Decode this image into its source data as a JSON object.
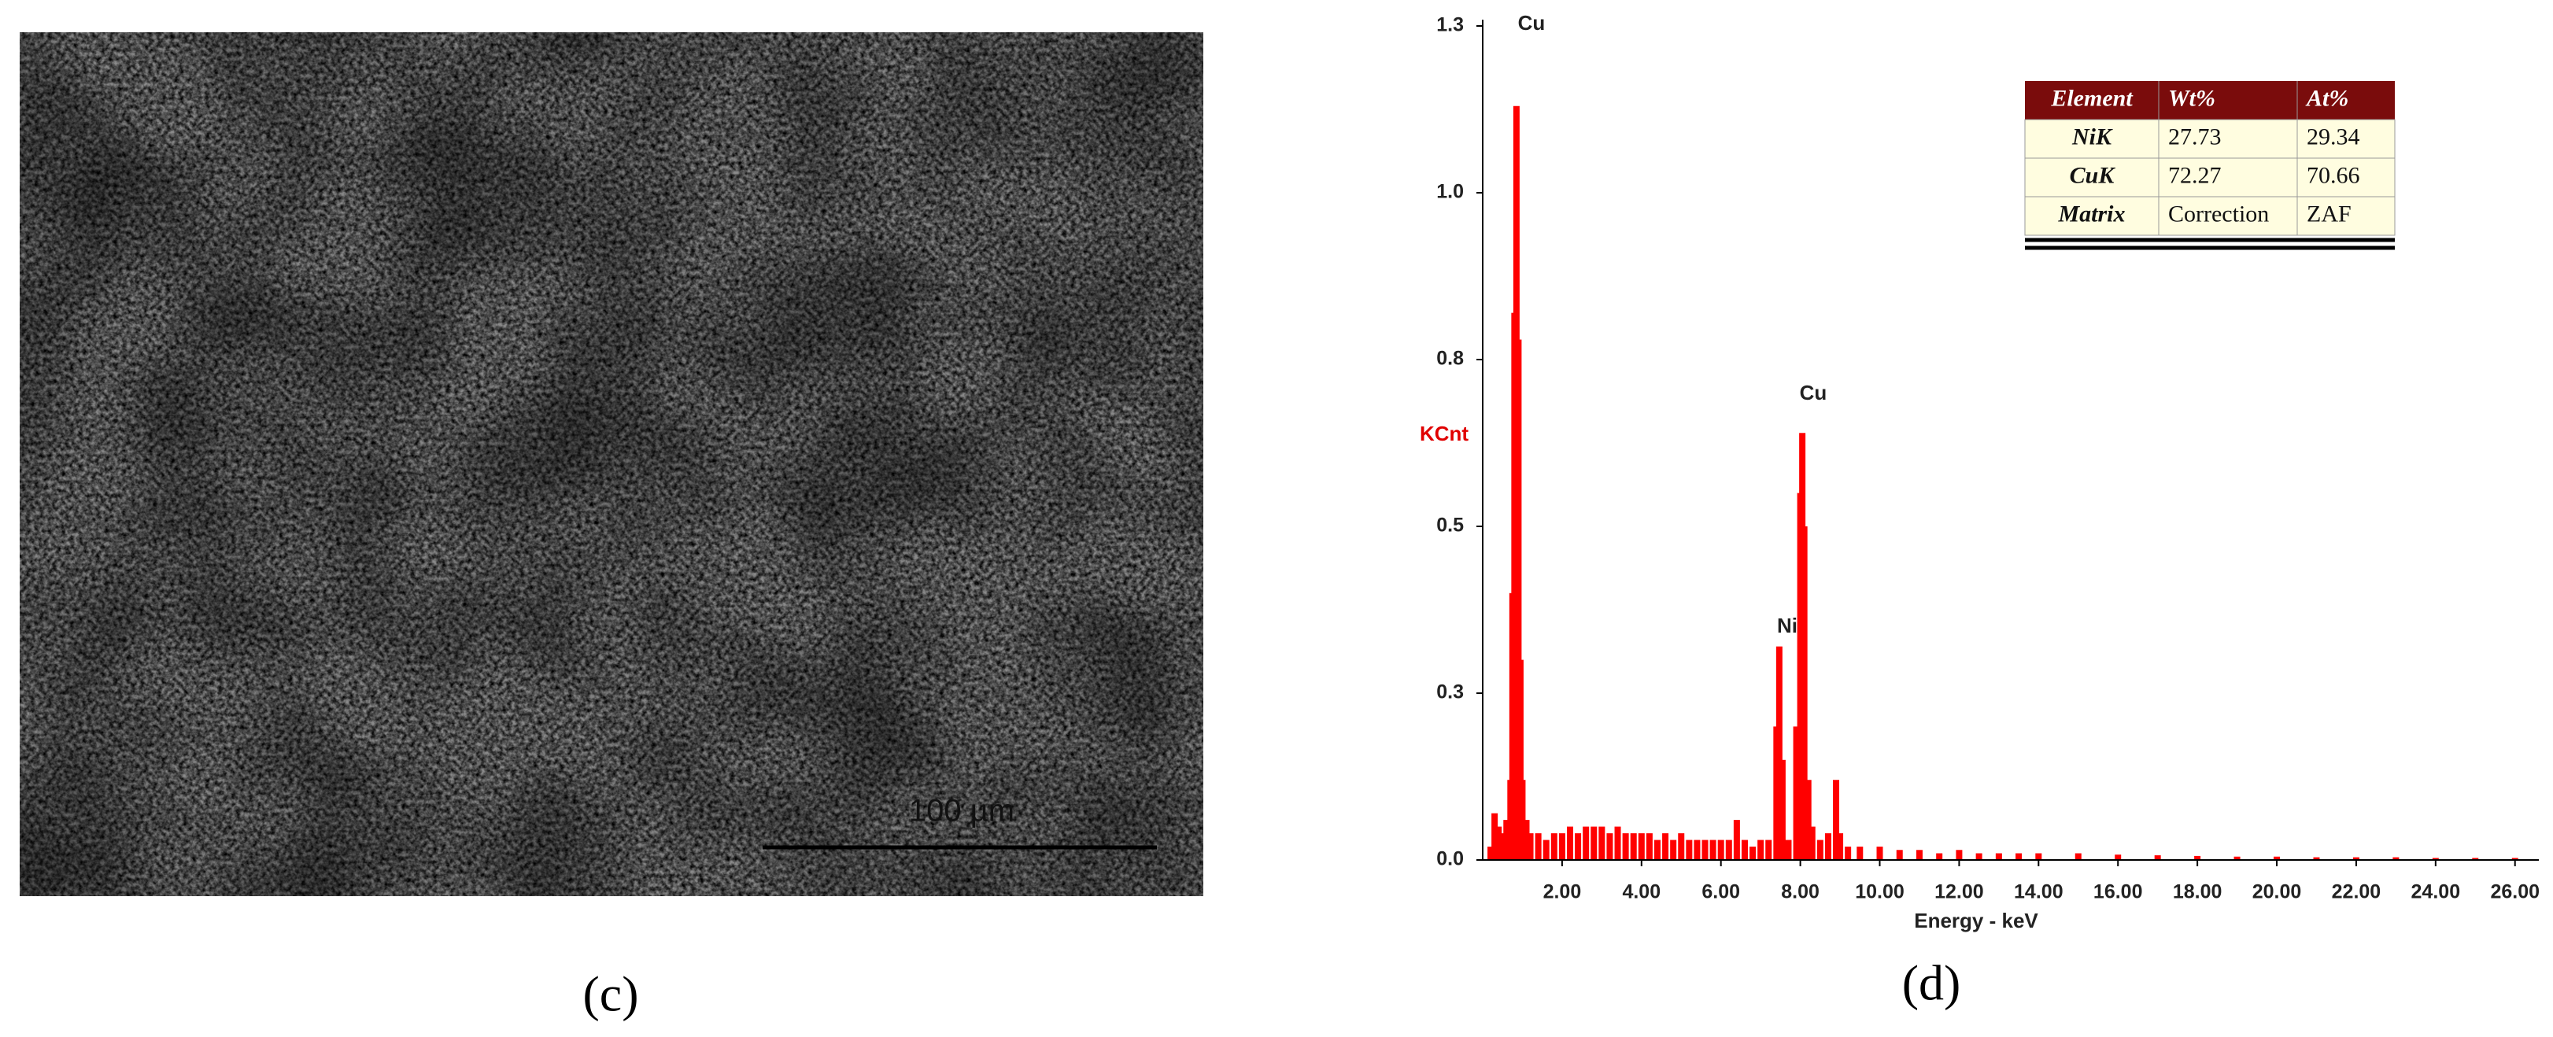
{
  "sem_image": {
    "scale_bar": "100 µm",
    "caption": "(c)"
  },
  "chart_data": {
    "type": "spectrum",
    "caption": "(d)",
    "ylabel": "KCnt",
    "xlabel": "Energy - keV",
    "color": "#ff0000",
    "xlim": [
      0,
      26.6
    ],
    "ylim": [
      0,
      1.25
    ],
    "xticks": [
      {
        "value": 2,
        "label": "2.00"
      },
      {
        "value": 4,
        "label": "4.00"
      },
      {
        "value": 6,
        "label": "6.00"
      },
      {
        "value": 8,
        "label": "8.00"
      },
      {
        "value": 10,
        "label": "10.00"
      },
      {
        "value": 12,
        "label": "12.00"
      },
      {
        "value": 14,
        "label": "14.00"
      },
      {
        "value": 16,
        "label": "16.00"
      },
      {
        "value": 18,
        "label": "18.00"
      },
      {
        "value": 20,
        "label": "20.00"
      },
      {
        "value": 22,
        "label": "22.00"
      },
      {
        "value": 24,
        "label": "24.00"
      },
      {
        "value": 26,
        "label": "26.00"
      }
    ],
    "yticks": [
      {
        "value": 0,
        "label": "0.0"
      },
      {
        "value": 0.25,
        "label": "0.3"
      },
      {
        "value": 0.5,
        "label": "0.5"
      },
      {
        "value": 0.75,
        "label": "0.8"
      },
      {
        "value": 1,
        "label": "1.0"
      },
      {
        "value": 1.25,
        "label": "1.3"
      }
    ],
    "x": [
      0.2,
      0.3,
      0.4,
      0.5,
      0.6,
      0.7,
      0.75,
      0.8,
      0.85,
      0.9,
      0.95,
      1.0,
      1.1,
      1.2,
      1.4,
      1.6,
      1.8,
      2.0,
      2.2,
      2.4,
      2.6,
      2.8,
      3.0,
      3.2,
      3.4,
      3.6,
      3.8,
      4.0,
      4.2,
      4.4,
      4.6,
      4.8,
      5.0,
      5.2,
      5.4,
      5.6,
      5.8,
      6.0,
      6.2,
      6.4,
      6.6,
      6.8,
      7.0,
      7.2,
      7.4,
      7.47,
      7.55,
      7.7,
      7.9,
      8.0,
      8.05,
      8.1,
      8.2,
      8.3,
      8.5,
      8.7,
      8.9,
      9.0,
      9.2,
      9.5,
      10,
      10.5,
      11,
      11.5,
      12,
      12.5,
      13,
      13.5,
      14,
      15,
      16,
      17,
      18,
      19,
      20,
      21,
      22,
      23,
      24,
      25,
      26
    ],
    "values": [
      0.02,
      0.07,
      0.05,
      0.04,
      0.06,
      0.12,
      0.4,
      0.82,
      1.13,
      0.78,
      0.3,
      0.12,
      0.06,
      0.04,
      0.04,
      0.03,
      0.04,
      0.04,
      0.05,
      0.04,
      0.05,
      0.05,
      0.05,
      0.04,
      0.05,
      0.04,
      0.04,
      0.04,
      0.04,
      0.03,
      0.04,
      0.03,
      0.04,
      0.03,
      0.03,
      0.03,
      0.03,
      0.03,
      0.03,
      0.06,
      0.03,
      0.02,
      0.03,
      0.03,
      0.2,
      0.32,
      0.15,
      0.03,
      0.2,
      0.55,
      0.64,
      0.5,
      0.12,
      0.05,
      0.03,
      0.04,
      0.12,
      0.04,
      0.02,
      0.02,
      0.02,
      0.015,
      0.015,
      0.01,
      0.015,
      0.01,
      0.01,
      0.01,
      0.01,
      0.01,
      0.008,
      0.007,
      0.006,
      0.005,
      0.005,
      0.004,
      0.004,
      0.004,
      0.003,
      0.003,
      0.003
    ],
    "annotations": [
      "Cu",
      "Cu",
      "Ni"
    ],
    "table": {
      "header": [
        "Element",
        "Wt%",
        "At%"
      ],
      "rows": [
        [
          "NiK",
          27.73,
          29.34
        ],
        [
          "CuK",
          72.27,
          70.66
        ],
        [
          "Matrix",
          "Correction",
          "ZAF"
        ]
      ]
    }
  }
}
